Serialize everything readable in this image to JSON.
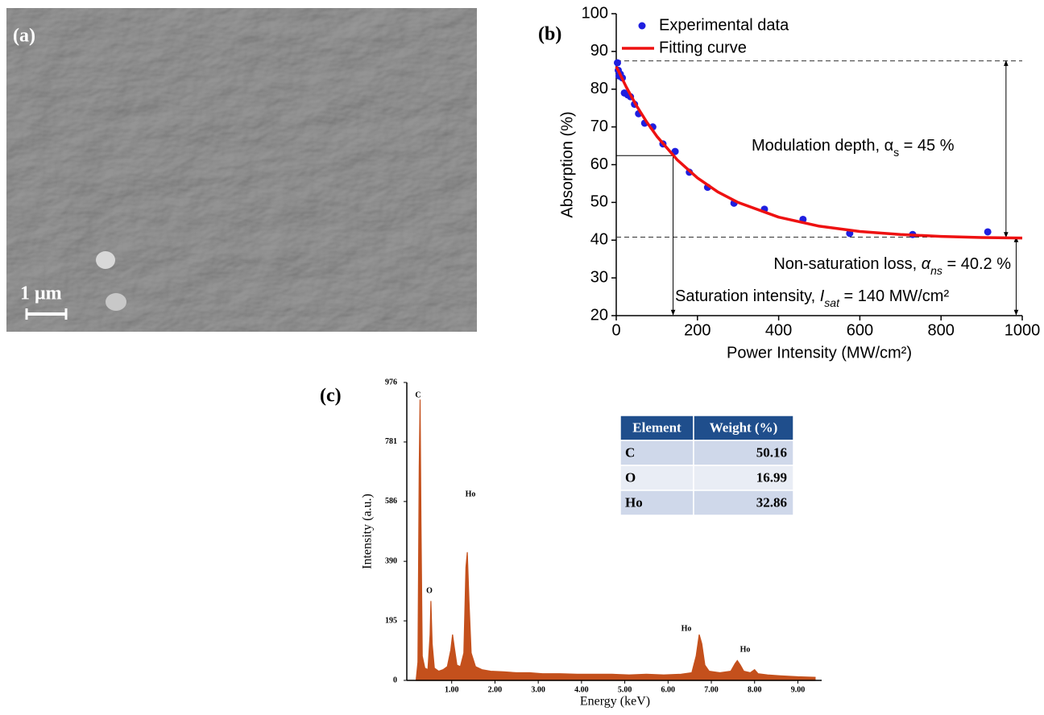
{
  "image": {
    "label": "(a)",
    "scale_bar": "1 μm"
  },
  "chart_data": [
    {
      "type": "scatter",
      "label": "(b)",
      "xlabel": "Power Intensity (MW/cm²)",
      "ylabel": "Absorption (%)",
      "xlim": [
        0,
        1000
      ],
      "ylim": [
        20,
        100
      ],
      "xticks": [
        0,
        200,
        400,
        600,
        800,
        1000
      ],
      "yticks": [
        20,
        30,
        40,
        50,
        60,
        70,
        80,
        90,
        100
      ],
      "series": [
        {
          "name": "Experimental data",
          "type": "scatter",
          "color": "#1f1fe0",
          "x": [
            3,
            5,
            7,
            10,
            15,
            20,
            28,
            35,
            45,
            55,
            70,
            90,
            115,
            145,
            180,
            225,
            290,
            365,
            460,
            575,
            730,
            915
          ],
          "values": [
            87,
            85,
            83.5,
            84,
            83,
            79,
            78.5,
            78,
            76,
            73.5,
            71,
            70,
            65.5,
            63.5,
            58,
            54,
            49.8,
            48.2,
            45.5,
            41.8,
            41.5,
            42.2
          ]
        },
        {
          "name": "Fitting curve",
          "type": "line",
          "color": "#ee1111",
          "x": [
            0,
            25,
            50,
            75,
            100,
            150,
            200,
            250,
            300,
            400,
            500,
            600,
            700,
            800,
            900,
            1000
          ],
          "values": [
            86,
            80.5,
            75.6,
            71.3,
            67.5,
            61.3,
            56.5,
            52.8,
            50,
            46.1,
            43.7,
            42.3,
            41.5,
            41,
            40.7,
            40.56
          ]
        }
      ],
      "hlines": [
        87.5,
        40.8
      ],
      "saturation": {
        "x": 140,
        "y": 62.4
      },
      "annotations": [
        [
          {
            "text": "Modulation depth, "
          },
          {
            "text": "α"
          },
          {
            "text": "s",
            "sub": true
          },
          {
            "text": " = 45 %"
          }
        ],
        [
          {
            "text": "Non-saturation loss, "
          },
          {
            "text": "α",
            "italic": true
          },
          {
            "text": "ns",
            "sub": true,
            "italic": true
          },
          {
            "text": " = 40.2 %"
          }
        ],
        [
          {
            "text": "Saturation intensity, "
          },
          {
            "text": "I",
            "italic": true
          },
          {
            "text": "sat",
            "sub": true,
            "italic": true
          },
          {
            "text": " = 140 MW/cm²"
          }
        ]
      ]
    },
    {
      "type": "area",
      "label": "(c)",
      "xlabel": "Energy (keV)",
      "ylabel": "Intensity (a.u.)",
      "color": "#c4501c",
      "xlim": [
        0,
        9.55
      ],
      "ylim": [
        0,
        976
      ],
      "yticks": [
        0,
        195,
        390,
        586,
        781,
        976
      ],
      "xticks": [
        {
          "value": 1,
          "label": "1.00"
        },
        {
          "value": 2,
          "label": "2.00"
        },
        {
          "value": 3,
          "label": "3.00"
        },
        {
          "value": 4,
          "label": "4.00"
        },
        {
          "value": 5,
          "label": "5.00"
        },
        {
          "value": 6,
          "label": "6.00"
        },
        {
          "value": 7,
          "label": "7.00"
        },
        {
          "value": 8,
          "label": "8.00"
        },
        {
          "value": 9,
          "label": "9.00"
        }
      ],
      "x": [
        0.18,
        0.22,
        0.25,
        0.27,
        0.29,
        0.32,
        0.38,
        0.45,
        0.5,
        0.52,
        0.55,
        0.6,
        0.7,
        0.8,
        0.9,
        0.98,
        1.02,
        1.06,
        1.12,
        1.2,
        1.28,
        1.33,
        1.36,
        1.4,
        1.45,
        1.55,
        1.7,
        1.9,
        2.2,
        2.5,
        2.8,
        3.1,
        3.5,
        3.9,
        4.3,
        4.7,
        5.1,
        5.5,
        5.9,
        6.3,
        6.55,
        6.65,
        6.72,
        6.78,
        6.85,
        6.95,
        7.2,
        7.45,
        7.55,
        7.6,
        7.67,
        7.75,
        7.9,
        8.0,
        8.08,
        8.3,
        8.6,
        9.0,
        9.4
      ],
      "values": [
        5,
        60,
        700,
        920,
        520,
        80,
        40,
        35,
        150,
        260,
        120,
        40,
        30,
        35,
        45,
        100,
        150,
        110,
        50,
        45,
        90,
        370,
        420,
        260,
        90,
        45,
        35,
        30,
        28,
        25,
        25,
        22,
        22,
        20,
        20,
        20,
        18,
        20,
        18,
        20,
        25,
        80,
        150,
        120,
        50,
        30,
        25,
        30,
        55,
        65,
        50,
        30,
        25,
        35,
        22,
        18,
        15,
        12,
        10
      ],
      "peak_labels": [
        "C",
        "O",
        "Ho",
        "Ho",
        "Ho"
      ]
    }
  ],
  "table": {
    "columns": [
      "Element",
      "Weight (%)"
    ],
    "rows": [
      [
        "C",
        50.16
      ],
      [
        "O",
        16.99
      ],
      [
        "Ho",
        32.86
      ]
    ]
  }
}
